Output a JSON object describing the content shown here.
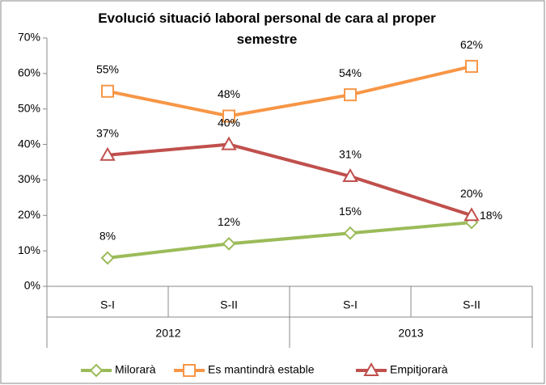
{
  "chart_data": {
    "type": "line",
    "title": "Evolució situació laboral personal de cara al proper semestre",
    "categories": [
      "S-I",
      "S-II",
      "S-I",
      "S-II"
    ],
    "category_groups": [
      "2012",
      "2013"
    ],
    "series": [
      {
        "name": "Milorarà",
        "color": "#9bbb59",
        "marker": "diamond",
        "values": [
          8,
          12,
          15,
          18
        ],
        "value_labels": [
          "8%",
          "12%",
          "15%",
          "18%"
        ]
      },
      {
        "name": "Es mantindrà estable",
        "color": "#f79646",
        "marker": "square",
        "values": [
          55,
          48,
          54,
          62
        ],
        "value_labels": [
          "55%",
          "48%",
          "54%",
          "62%"
        ]
      },
      {
        "name": "Empitjorarà",
        "color": "#c0504d",
        "marker": "triangle",
        "values": [
          37,
          40,
          31,
          20
        ],
        "value_labels": [
          "37%",
          "40%",
          "31%",
          "20%"
        ]
      }
    ],
    "ylim": [
      0,
      70
    ],
    "yticks": [
      {
        "value": 0,
        "label": "0%"
      },
      {
        "value": 10,
        "label": "10%"
      },
      {
        "value": 20,
        "label": "20%"
      },
      {
        "value": 30,
        "label": "30%"
      },
      {
        "value": 40,
        "label": "40%"
      },
      {
        "value": 50,
        "label": "50%"
      },
      {
        "value": 60,
        "label": "60%"
      },
      {
        "value": 70,
        "label": "70%"
      }
    ],
    "grid": false,
    "legend": "bottom"
  }
}
